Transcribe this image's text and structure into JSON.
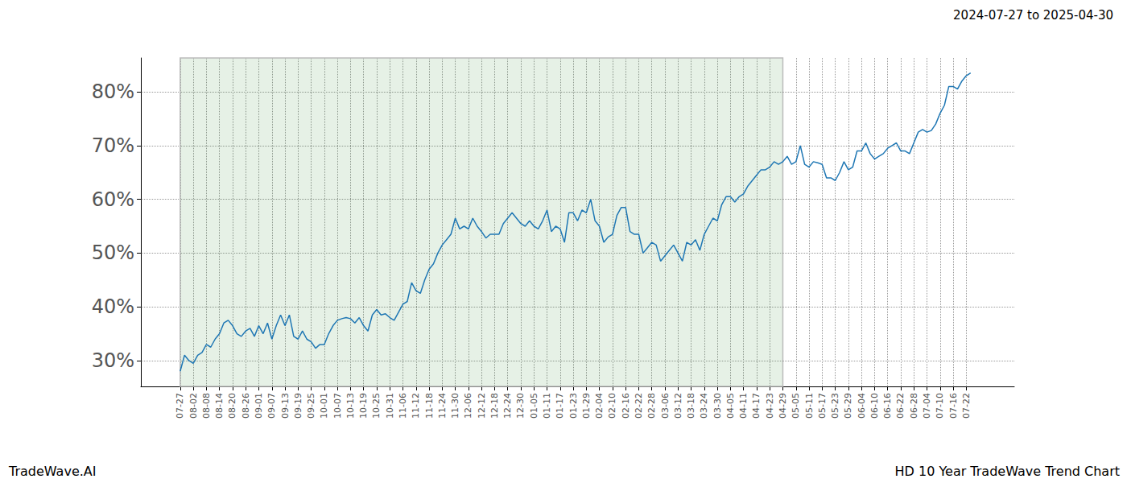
{
  "chart_data": {
    "type": "line",
    "title": "2024-07-27 to 2025-04-30",
    "annotations": [
      {
        "text": "TradeWave.AI",
        "position": "bottom-left"
      },
      {
        "text": "HD 10 Year TradeWave Trend Chart",
        "position": "bottom-right"
      }
    ],
    "categories": [
      null,
      null,
      null,
      null,
      null,
      null,
      null,
      null,
      null,
      "07-27",
      null,
      null,
      "08-02",
      null,
      null,
      "08-08",
      null,
      null,
      "08-14",
      null,
      null,
      "08-20",
      null,
      null,
      "08-26",
      null,
      null,
      "09-01",
      null,
      null,
      "09-07",
      null,
      null,
      "09-13",
      null,
      null,
      "09-19",
      null,
      null,
      "09-25",
      null,
      null,
      "10-01",
      null,
      null,
      "10-07",
      null,
      null,
      "10-13",
      null,
      null,
      "10-19",
      null,
      null,
      "10-25",
      null,
      null,
      "10-31",
      null,
      null,
      "11-06",
      null,
      null,
      "11-12",
      null,
      null,
      "11-18",
      null,
      null,
      "11-24",
      null,
      null,
      "11-30",
      null,
      null,
      "12-06",
      null,
      null,
      "12-12",
      null,
      null,
      "12-18",
      null,
      null,
      "12-24",
      null,
      null,
      "12-30",
      null,
      null,
      "01-05",
      null,
      null,
      "01-11",
      null,
      null,
      "01-17",
      null,
      null,
      "01-23",
      null,
      null,
      "01-29",
      null,
      null,
      "02-04",
      null,
      null,
      "02-10",
      null,
      null,
      "02-16",
      null,
      null,
      "02-22",
      null,
      null,
      "02-28",
      null,
      null,
      "03-06",
      null,
      null,
      "03-12",
      null,
      null,
      "03-18",
      null,
      null,
      "03-24",
      null,
      null,
      "03-30",
      null,
      null,
      "04-05",
      null,
      null,
      "04-11",
      null,
      null,
      "04-17",
      null,
      null,
      "04-23",
      null,
      null,
      "04-29",
      null,
      null,
      "05-05",
      null,
      null,
      "05-11",
      null,
      null,
      "05-17",
      null,
      null,
      "05-23",
      null,
      null,
      "05-29",
      null,
      null,
      "06-04",
      null,
      null,
      "06-10",
      null,
      null,
      "06-16",
      null,
      null,
      "06-22",
      null,
      null,
      "06-28",
      null,
      null,
      "07-04",
      null,
      null,
      "07-10",
      null,
      null,
      "07-16",
      null,
      null,
      "07-22",
      null,
      null,
      null,
      null,
      null,
      null,
      null,
      null,
      null,
      null,
      null
    ],
    "series": [
      {
        "name": "HD",
        "color": "#1f77b4",
        "values": [
          null,
          null,
          null,
          null,
          null,
          null,
          null,
          null,
          null,
          28,
          31,
          30,
          29.5,
          31,
          31.5,
          33,
          32.5,
          34,
          35,
          37,
          37.5,
          36.5,
          35,
          34.5,
          35.5,
          36,
          34.5,
          36.5,
          35,
          37,
          34,
          36.5,
          38.5,
          36.5,
          38.5,
          34.5,
          34,
          35.5,
          34,
          33.5,
          32.3,
          33,
          33,
          35,
          36.5,
          37.5,
          37.8,
          38,
          37.8,
          37,
          38,
          36.5,
          35.5,
          38.5,
          39.5,
          38.5,
          38.7,
          38,
          37.5,
          39,
          40.5,
          41,
          44.5,
          43,
          42.5,
          45,
          47,
          48,
          50,
          51.5,
          52.5,
          53.5,
          56.5,
          54.5,
          55,
          54.5,
          56.5,
          55,
          54,
          52.8,
          53.5,
          53.5,
          53.5,
          55.5,
          56.5,
          57.5,
          56.5,
          55.5,
          55,
          56,
          55,
          54.5,
          56,
          58,
          54,
          55,
          54.5,
          52,
          57.5,
          57.5,
          56,
          58,
          57.5,
          60,
          56,
          55,
          52,
          53,
          53.5,
          57,
          58.5,
          58.5,
          54,
          53.5,
          53.5,
          50,
          51,
          52,
          51.5,
          48.5,
          49.5,
          50.5,
          51.5,
          50,
          48.5,
          52,
          51.5,
          52.5,
          50.5,
          53.5,
          55,
          56.5,
          56,
          59,
          60.5,
          60.5,
          59.5,
          60.5,
          61,
          62.5,
          63.5,
          64.5,
          65.5,
          65.5,
          66,
          67,
          66.5,
          67,
          68,
          66.5,
          67,
          70,
          66.5,
          66,
          67,
          66.8,
          66.5,
          64,
          64,
          63.5,
          65,
          67,
          65.5,
          66,
          69,
          69,
          70.5,
          68.5,
          67.5,
          68,
          68.5,
          69.5,
          70,
          70.5,
          69,
          69,
          68.5,
          70.5,
          72.5,
          73,
          72.5,
          72.8,
          74,
          76,
          77.5,
          81,
          81,
          80.5,
          82,
          83,
          83.5,
          null,
          null,
          null,
          null,
          null,
          null,
          null,
          null,
          null,
          null
        ]
      }
    ],
    "highlight": {
      "start": "07-27",
      "end": "04-29"
    },
    "ylim": [
      25.2,
      86.3
    ],
    "yticks": [
      {
        "value": 30,
        "label": "30%"
      },
      {
        "value": 40,
        "label": "40%"
      },
      {
        "value": 50,
        "label": "50%"
      },
      {
        "value": 60,
        "label": "60%"
      },
      {
        "value": 70,
        "label": "70%"
      },
      {
        "value": 80,
        "label": "80%"
      }
    ],
    "grid": true
  }
}
